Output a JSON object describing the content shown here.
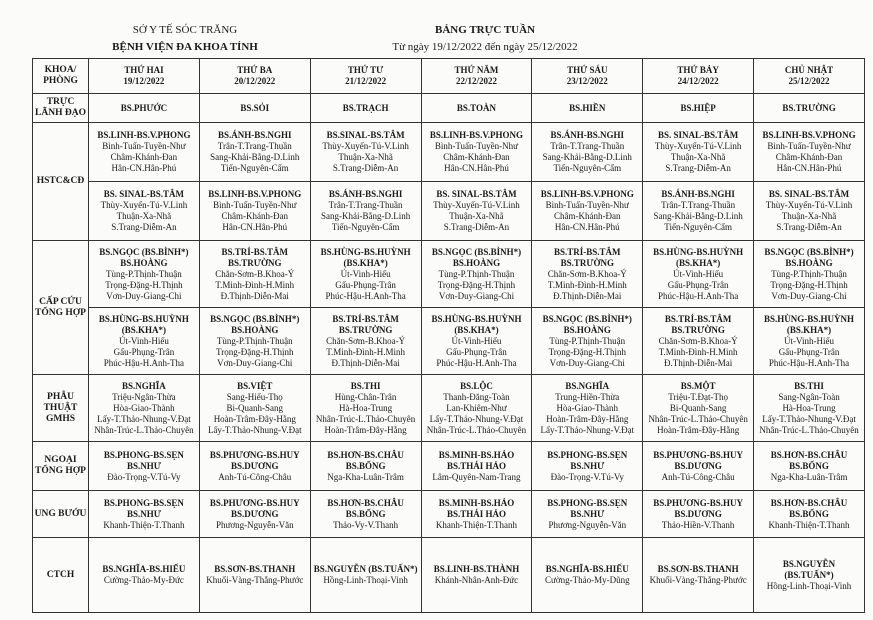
{
  "header": {
    "org": "SỞ Y TẾ SÓC TRĂNG",
    "hospital": "BỆNH VIỆN ĐA KHOA TỈNH",
    "title": "BẢNG TRỰC TUẦN",
    "period": "Từ ngày 19/12/2022 đến ngày 25/12/2022"
  },
  "table": {
    "dept_header": [
      "KHOA/",
      "PHÒNG"
    ],
    "days": [
      {
        "day": "THỨ HAI",
        "date": "19/12/2022"
      },
      {
        "day": "THỨ BA",
        "date": "20/12/2022"
      },
      {
        "day": "THỨ TƯ",
        "date": "21/12/2022"
      },
      {
        "day": "THỨ NĂM",
        "date": "22/12/2022"
      },
      {
        "day": "THỨ SÁU",
        "date": "23/12/2022"
      },
      {
        "day": "THỨ BẢY",
        "date": "24/12/2022"
      },
      {
        "day": "CHỦ NHẬT",
        "date": "25/12/2022"
      }
    ],
    "rows": [
      {
        "label": [
          "TRỰC",
          "LÃNH ĐẠO"
        ],
        "cells": [
          [
            [
              "BS.PHƯỚC"
            ],
            [
              "BS.SỎI"
            ],
            [
              "BS.TRẠCH"
            ],
            [
              "BS.TOÀN"
            ],
            [
              "BS.HIỀN"
            ],
            [
              "BS.HIỆP"
            ],
            [
              "BS.TRƯỜNG"
            ]
          ]
        ]
      },
      {
        "label": [
          "HSTC&CĐ"
        ],
        "cells": [
          [
            [
              "BS.LINH-BS.V.PHONG",
              "Bình-Tuấn-Tuyền-Như",
              "Châm-Khánh-Đan",
              "Hân-CN.Hân-Phú"
            ],
            [
              "BS.ÁNH-BS.NGHI",
              "Trân-T.Trang-Thuần",
              "Sang-Khải-Bằng-D.Linh",
              "Tiến-Nguyên-Cẩm"
            ],
            [
              "BS.SINAL-BS.TÂM",
              "Thùy-Xuyến-Tú-V.Linh",
              "Thuận-Xa-Nhã",
              "S.Trang-Diễm-An"
            ],
            [
              "BS.LINH-BS.V.PHONG",
              "Bình-Tuấn-Tuyền-Như",
              "Châm-Khánh-Đan",
              "Hân-CN.Hân-Phú"
            ],
            [
              "BS.ÁNH-BS.NGHI",
              "Trân-T.Trang-Thuần",
              "Sang-Khải-Bằng-D.Linh",
              "Tiến-Nguyên-Cẩm"
            ],
            [
              "BS. SINAL-BS.TÂM",
              "Thùy-Xuyến-Tú-V.Linh",
              "Thuận-Xa-Nhã",
              "S.Trang-Diễm-An"
            ],
            [
              "BS.LINH-BS.V.PHONG",
              "Bình-Tuấn-Tuyền-Như",
              "Châm-Khánh-Đan",
              "Hân-CN.Hân-Phú"
            ]
          ],
          [
            [
              "BS. SINAL-BS.TÂM",
              "Thùy-Xuyến-Tú-V.Linh",
              "Thuận-Xa-Nhã",
              "S.Trang-Diễm-An"
            ],
            [
              "BS.LINH-BS.V.PHONG",
              "Bình-Tuấn-Tuyền-Như",
              "Châm-Khánh-Đan",
              "Hân-CN.Hân-Phú"
            ],
            [
              "BS.ÁNH-BS.NGHI",
              "Trân-T.Trang-Thuần",
              "Sang-Khải-Bằng-D.Linh",
              "Tiến-Nguyên-Cẩm"
            ],
            [
              "BS. SINAL-BS.TÂM",
              "Thùy-Xuyến-Tú-V.Linh",
              "Thuận-Xa-Nhã",
              "S.Trang-Diễm-An"
            ],
            [
              "BS.LINH-BS.V.PHONG",
              "Bình-Tuấn-Tuyền-Như",
              "Châm-Khánh-Đan",
              "Hân-CN.Hân-Phú"
            ],
            [
              "BS.ÁNH-BS.NGHI",
              "Trân-T.Trang-Thuần",
              "Sang-Khải-Bằng-D.Linh",
              "Tiến-Nguyên-Cẩm"
            ],
            [
              "BS. SINAL-BS.TÂM",
              "Thùy-Xuyến-Tú-V.Linh",
              "Thuận-Xa-Nhã",
              "S.Trang-Diễm-An"
            ]
          ]
        ]
      },
      {
        "label": [
          "CẤP CỨU",
          "TỔNG HỢP"
        ],
        "cells": [
          [
            [
              "BS.NGỌC (BS.BÌNH*)",
              "BS.HOÀNG",
              "Tùng-P.Thịnh-Thuận",
              "Trọng-Đặng-H.Thịnh",
              "Vơn-Duy-Giang-Chi"
            ],
            [
              "BS.TRÍ-BS.TÂM",
              "BS.TRƯỜNG",
              "Chăn-Sơm-B.Khoa-Ý",
              "T.Minh-Đình-H.Minh",
              "Đ.Thịnh-Diễn-Mai"
            ],
            [
              "BS.HÙNG-BS.HUỲNH",
              "(BS.KHA*)",
              "Út-Vinh-Hiếu",
              "Gấu-Phụng-Trân",
              "Phúc-Hậu-H.Anh-Tha"
            ],
            [
              "BS.NGỌC (BS.BÌNH*)",
              "BS.HOÀNG",
              "Tùng-P.Thịnh-Thuận",
              "Trọng-Đặng-H.Thịnh",
              "Vơn-Duy-Giang-Chi"
            ],
            [
              "BS.TRÍ-BS.TÂM",
              "BS.TRƯỜNG",
              "Chăn-Sơm-B.Khoa-Ý",
              "T.Minh-Đình-H.Minh",
              "Đ.Thịnh-Diễn-Mai"
            ],
            [
              "BS.HÙNG-BS.HUỲNH",
              "(BS.KHA*)",
              "Út-Vinh-Hiếu",
              "Gấu-Phụng-Trân",
              "Phúc-Hậu-H.Anh-Tha"
            ],
            [
              "BS.NGỌC (BS.BÌNH*)",
              "BS.HOÀNG",
              "Tùng-P.Thịnh-Thuận",
              "Trọng-Đặng-H.Thịnh",
              "Vơn-Duy-Giang-Chi"
            ]
          ],
          [
            [
              "BS.HÙNG-BS.HUỲNH",
              "(BS.KHA*)",
              "Út-Vinh-Hiếu",
              "Gấu-Phụng-Trân",
              "Phúc-Hậu-H.Anh-Tha"
            ],
            [
              "BS.NGỌC (BS.BÌNH*)",
              "BS.HOÀNG",
              "Tùng-P.Thịnh-Thuận",
              "Trọng-Đặng-H.Thịnh",
              "Vơn-Duy-Giang-Chi"
            ],
            [
              "BS.TRÍ-BS.TÂM",
              "BS.TRƯỜNG",
              "Chăn-Sơm-B.Khoa-Ý",
              "T.Minh-Đình-H.Minh",
              "Đ.Thịnh-Diễn-Mai"
            ],
            [
              "BS.HÙNG-BS.HUỲNH",
              "(BS.KHA*)",
              "Út-Vinh-Hiếu",
              "Gấu-Phụng-Trân",
              "Phúc-Hậu-H.Anh-Tha"
            ],
            [
              "BS.NGỌC (BS.BÌNH*)",
              "BS.HOÀNG",
              "Tùng-P.Thịnh-Thuận",
              "Trọng-Đặng-H.Thịnh",
              "Vơn-Duy-Giang-Chi"
            ],
            [
              "BS.TRÍ-BS.TÂM",
              "BS.TRƯỜNG",
              "Chăn-Sơm-B.Khoa-Ý",
              "T.Minh-Đình-H.Minh",
              "Đ.Thịnh-Diễn-Mai"
            ],
            [
              "BS.HÙNG-BS.HUỲNH",
              "(BS.KHA*)",
              "Út-Vinh-Hiếu",
              "Gấu-Phụng-Trân",
              "Phúc-Hậu-H.Anh-Tha"
            ]
          ]
        ]
      },
      {
        "label": [
          "PHẪU THUẬT",
          "GMHS"
        ],
        "cells": [
          [
            [
              "BS.NGHĨA",
              "Triệu-Ngân-Thừa",
              "Hòa-Giao-Thành",
              "Lấy-T.Thảo-Nhung-V.Đạt",
              "Nhân-Trúc-L.Thảo-Chuyên"
            ],
            [
              "BS.VIỆT",
              "Sang-Hiếu-Thọ",
              "Bi-Quanh-Sang",
              "Hoàn-Trâm-Đây-Hằng",
              "Lấy-T.Thảo-Nhung-V.Đạt"
            ],
            [
              "BS.THI",
              "Hùng-Chân-Trân",
              "Hà-Hoa-Trung",
              "Nhân-Trúc-L.Thảo-Chuyên",
              "Hoàn-Trâm-Đây-Hằng"
            ],
            [
              "BS.LỘC",
              "Thanh-Đăng-Toàn",
              "Lan-Khiêm-Như",
              "Lấy-T.Thảo-Nhung-V.Đạt",
              "Nhân-Trúc-L.Thảo-Chuyên"
            ],
            [
              "BS.NGHĨA",
              "Trung-Hiền-Thừa",
              "Hòa-Giao-Thành",
              "Hoàn-Trâm-Đây-Hằng",
              "Lấy-T.Thảo-Nhung-V.Đạt"
            ],
            [
              "BS.MỘT",
              "Triệu-T.Đạt-Thọ",
              "Bi-Quanh-Sang",
              "Nhân-Trúc-L.Thảo-Chuyên",
              "Hoàn-Trâm-Đây-Hằng"
            ],
            [
              "BS.THI",
              "Sang-Ngân-Toàn",
              "Hà-Hoa-Trung",
              "Lấy-T.Thảo-Nhung-V.Đạt",
              "Nhân-Trúc-L.Thảo-Chuyên"
            ]
          ]
        ]
      },
      {
        "label": [
          "NGOẠI",
          "TỔNG HỢP"
        ],
        "cells": [
          [
            [
              "BS.PHONG-BS.SẸN",
              "BS.NHƯ",
              "Đào-Trọng-V.Tú-Vy"
            ],
            [
              "BS.PHƯƠNG-BS.HUY",
              "BS.DƯƠNG",
              "Anh-Tú-Công-Châu"
            ],
            [
              "BS.HƠN-BS.CHÂU",
              "BS.BỔNG",
              "Nga-Kha-Luân-Trâm"
            ],
            [
              "BS.MINH-BS.HẢO",
              "BS.THÁI HẢO",
              "Lâm-Quyên-Nam-Trang"
            ],
            [
              "BS.PHONG-BS.SẸN",
              "BS.NHƯ",
              "Đào-Trọng-V.Tú-Vy"
            ],
            [
              "BS.PHƯƠNG-BS.HUY",
              "BS.DƯƠNG",
              "Anh-Tú-Công-Châu"
            ],
            [
              "BS.HƠN-BS.CHÂU",
              "BS.BỔNG",
              "Nga-Kha-Luân-Trâm"
            ]
          ]
        ]
      },
      {
        "label": [
          "UNG BƯỚU"
        ],
        "cells": [
          [
            [
              "BS.PHONG-BS.SẸN",
              "BS.NHƯ",
              "Khanh-Thiện-T.Thanh"
            ],
            [
              "BS.PHƯƠNG-BS.HUY",
              "BS.DƯƠNG",
              "Phương-Nguyễn-Văn"
            ],
            [
              "BS.HƠN-BS.CHÂU",
              "BS.BỔNG",
              "Thảo-Vy-V.Thanh"
            ],
            [
              "BS.MINH-BS.HẢO",
              "BS.THÁI HẢO",
              "Khanh-Thiện-T.Thanh"
            ],
            [
              "BS.PHONG-BS.SẸN",
              "BS.NHƯ",
              "Phương-Nguyễn-Văn"
            ],
            [
              "BS.PHƯƠNG-BS.HUY",
              "BS.DƯƠNG",
              "Thảo-Hiền-V.Thanh"
            ],
            [
              "BS.HƠN-BS.CHÂU",
              "BS.BỔNG",
              "Khanh-Thiện-T.Thanh"
            ]
          ]
        ]
      },
      {
        "label": [
          "CTCH"
        ],
        "cells": [
          [
            [
              "BS.NGHĨA-BS.HIẾU",
              "Cường-Thảo-My-Đức"
            ],
            [
              "BS.SƠN-BS.THANH",
              "Khuổi-Vàng-Thắng-Phước"
            ],
            [
              "BS.NGUYỄN (BS.TUẤN*)",
              "Hồng-Linh-Thoại-Vinh"
            ],
            [
              "BS.LINH-BS.THÀNH",
              "Khánh-Nhân-Anh-Đức"
            ],
            [
              "BS.NGHĨA-BS.HIẾU",
              "Cường-Thảo-My-Dũng"
            ],
            [
              "BS.SƠN-BS.THANH",
              "Khuổi-Vàng-Thắng-Phước"
            ],
            [
              "BS.NGUYỄN",
              "(BS.TUẤN*)",
              "Hồng-Linh-Thoại-Vinh"
            ]
          ]
        ]
      }
    ]
  }
}
